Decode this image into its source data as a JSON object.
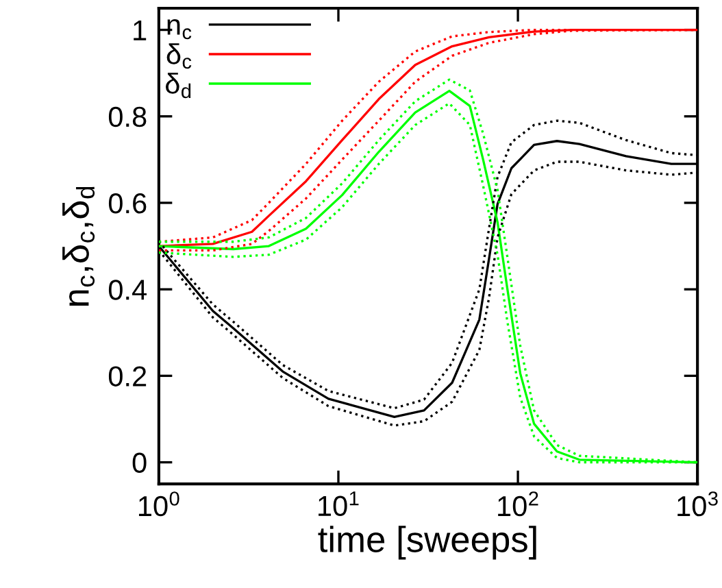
{
  "chart_data": {
    "type": "line",
    "xlabel": "time [sweeps]",
    "ylabel": "n$_{c}$,δ$_{c}$,δ$_{d}$",
    "log": "x",
    "xlim": [
      1,
      1000
    ],
    "ylim": [
      -0.05,
      1.05
    ],
    "xticks": [
      {
        "value": 1,
        "label": "10$^{0}$"
      },
      {
        "value": 10,
        "label": "10$^{1}$"
      },
      {
        "value": 100,
        "label": "10$^{2}$"
      },
      {
        "value": 1000,
        "label": "10$^{3}$"
      }
    ],
    "yticks": [
      0,
      0.2,
      0.4,
      0.6,
      0.8,
      1
    ],
    "legend": "top left",
    "grid": false,
    "line_style": "solid",
    "marker": "none",
    "series": [
      {
        "name": "n$_{c}$",
        "color": "#000000",
        "x": [
          1,
          2,
          2.6,
          4.9,
          8.8,
          20.5,
          30,
          43,
          61,
          69,
          77,
          92,
          123,
          165,
          220,
          400,
          715,
          1000
        ],
        "values": [
          0.5,
          0.35,
          0.31,
          0.21,
          0.147,
          0.105,
          0.12,
          0.184,
          0.33,
          0.47,
          0.597,
          0.68,
          0.734,
          0.743,
          0.736,
          0.708,
          0.69,
          0.69
        ]
      },
      {
        "name": "δ$_{c}$",
        "color": "#ff0000",
        "x": [
          1,
          2,
          3.3,
          4.1,
          6.6,
          10.5,
          16.8,
          26.8,
          43,
          69,
          123,
          200,
          1000
        ],
        "values": [
          0.5,
          0.505,
          0.533,
          0.57,
          0.65,
          0.745,
          0.84,
          0.919,
          0.962,
          0.983,
          0.996,
          1.0,
          1.0
        ]
      },
      {
        "name": "δ$_{d}$",
        "color": "#00ff00",
        "x": [
          1,
          2.6,
          4.1,
          6.6,
          10.5,
          16.8,
          26.8,
          41.5,
          54,
          64,
          77,
          87,
          103,
          123,
          165,
          220,
          1000
        ],
        "values": [
          0.5,
          0.493,
          0.5,
          0.54,
          0.618,
          0.718,
          0.809,
          0.859,
          0.824,
          0.7,
          0.555,
          0.406,
          0.206,
          0.089,
          0.025,
          0.006,
          0.0
        ]
      },
      {
        "color": "#000000",
        "line_style": "dotted",
        "x": [
          1,
          2,
          2.6,
          4.9,
          8.8,
          20.5,
          30,
          43,
          61,
          69,
          77,
          92,
          123,
          165,
          220,
          400,
          715,
          1000
        ],
        "values": [
          0.49,
          0.335,
          0.295,
          0.195,
          0.13,
          0.085,
          0.095,
          0.14,
          0.26,
          0.38,
          0.52,
          0.62,
          0.675,
          0.695,
          0.695,
          0.675,
          0.665,
          0.67
        ]
      },
      {
        "color": "#000000",
        "line_style": "dotted",
        "x": [
          1,
          2,
          2.6,
          4.9,
          8.8,
          20.5,
          30,
          43,
          61,
          69,
          77,
          92,
          123,
          165,
          220,
          400,
          715,
          1000
        ],
        "values": [
          0.51,
          0.365,
          0.325,
          0.225,
          0.165,
          0.125,
          0.145,
          0.23,
          0.4,
          0.54,
          0.66,
          0.74,
          0.78,
          0.79,
          0.785,
          0.745,
          0.715,
          0.71
        ]
      },
      {
        "color": "#ff0000",
        "line_style": "dotted",
        "x": [
          1,
          2,
          3.3,
          4.1,
          6.6,
          10.5,
          16.8,
          26.8,
          43,
          69,
          123,
          200,
          1000
        ],
        "values": [
          0.49,
          0.49,
          0.505,
          0.535,
          0.61,
          0.7,
          0.79,
          0.88,
          0.94,
          0.97,
          0.99,
          0.998,
          1.0
        ]
      },
      {
        "color": "#ff0000",
        "line_style": "dotted",
        "x": [
          1,
          2,
          3.3,
          4.1,
          6.6,
          10.5,
          16.8,
          26.8,
          43,
          69,
          123,
          200,
          1000
        ],
        "values": [
          0.51,
          0.52,
          0.56,
          0.6,
          0.69,
          0.79,
          0.88,
          0.95,
          0.985,
          0.995,
          1.0,
          1.0,
          1.0
        ]
      },
      {
        "color": "#00ff00",
        "line_style": "dotted",
        "x": [
          1,
          2.6,
          4.1,
          6.6,
          10.5,
          16.8,
          26.8,
          41.5,
          54,
          64,
          77,
          87,
          103,
          123,
          165,
          220,
          1000
        ],
        "values": [
          0.485,
          0.475,
          0.48,
          0.515,
          0.59,
          0.69,
          0.78,
          0.83,
          0.78,
          0.64,
          0.48,
          0.33,
          0.15,
          0.06,
          0.01,
          0.0,
          0.0
        ]
      },
      {
        "color": "#00ff00",
        "line_style": "dotted",
        "x": [
          1,
          2.6,
          4.1,
          6.6,
          10.5,
          16.8,
          26.8,
          41.5,
          54,
          64,
          77,
          87,
          103,
          123,
          165,
          220,
          1000
        ],
        "values": [
          0.51,
          0.51,
          0.52,
          0.565,
          0.645,
          0.745,
          0.835,
          0.885,
          0.86,
          0.76,
          0.63,
          0.48,
          0.27,
          0.12,
          0.04,
          0.015,
          0.0
        ]
      }
    ]
  }
}
